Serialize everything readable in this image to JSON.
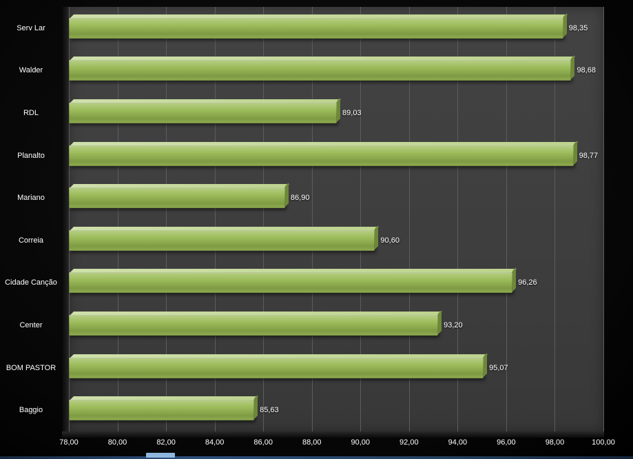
{
  "chart_data": {
    "type": "bar",
    "orientation": "horizontal",
    "title": "",
    "xlabel": "",
    "ylabel": "",
    "grid": true,
    "legend": false,
    "xlim": [
      78,
      100
    ],
    "categories": [
      "Serv Lar",
      "Walder",
      "RDL",
      "Planalto",
      "Mariano",
      "Correia",
      "Cidade Canção",
      "Center",
      "BOM PASTOR",
      "Baggio"
    ],
    "values": [
      98.35,
      98.68,
      89.03,
      98.77,
      86.9,
      90.6,
      96.26,
      93.2,
      95.07,
      85.63
    ],
    "value_labels": [
      "98,35",
      "98,68",
      "89,03",
      "98,77",
      "86,90",
      "90,60",
      "96,26",
      "93,20",
      "95,07",
      "85,63"
    ],
    "x_ticks": [
      "78,00",
      "80,00",
      "82,00",
      "84,00",
      "86,00",
      "88,00",
      "90,00",
      "92,00",
      "94,00",
      "96,00",
      "98,00",
      "100,00"
    ],
    "colors": {
      "bar": "#9BBB59",
      "bar_highlight": "#C6D9A0",
      "bar_side": "#6E8839",
      "plot_background": "#3F3F3F",
      "gridline": "#5D5D5D",
      "page_background": "#070707",
      "text": "#FFFFFF",
      "window_edge_blue": "#2D4F7D"
    }
  }
}
